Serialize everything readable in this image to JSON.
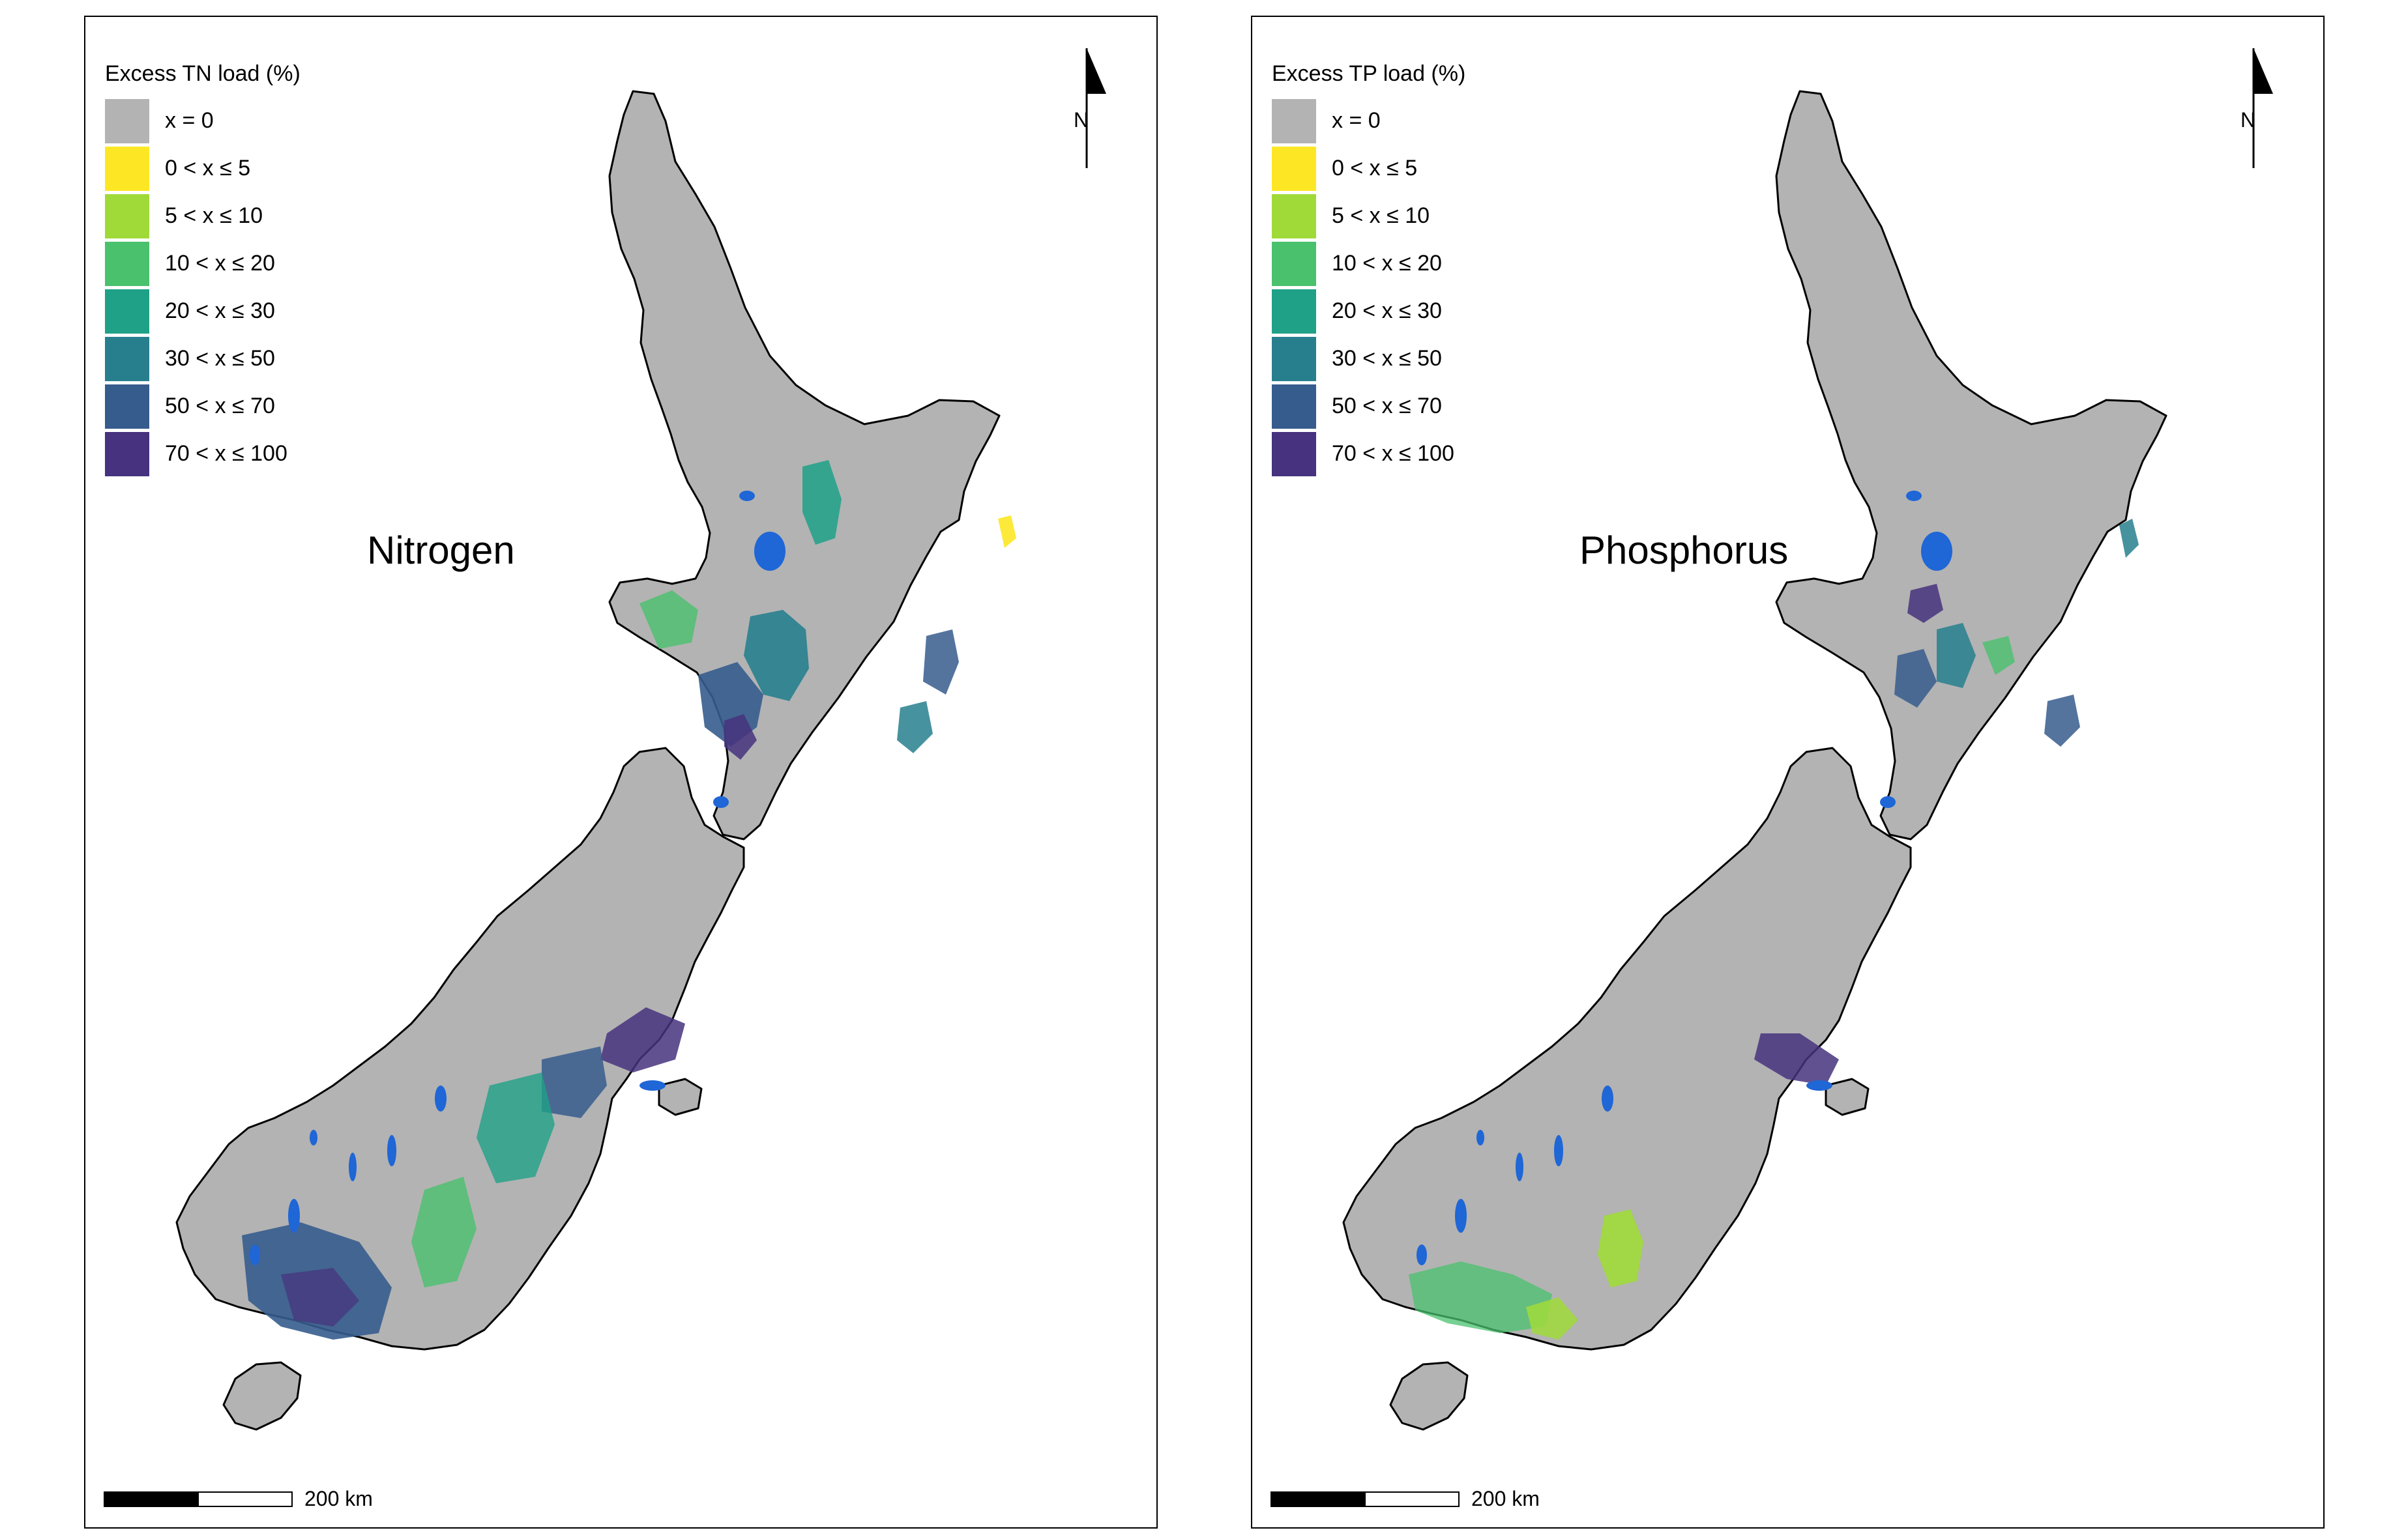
{
  "colors": {
    "x0": "#b3b3b3",
    "c0_5": "#fde725",
    "c5_10": "#a0da39",
    "c10_20": "#4ac16d",
    "c20_30": "#1fa187",
    "c30_50": "#277f8e",
    "c50_70": "#365c8d",
    "c70_100": "#46327e",
    "water": "#1f66d6",
    "outline": "#000000"
  },
  "legend_labels": [
    "x = 0",
    "0 < x ≤ 5",
    "5 < x ≤ 10",
    "10 < x ≤ 20",
    "20 < x ≤ 30",
    "30 < x ≤ 50",
    "50 < x ≤ 70",
    "70 < x ≤ 100"
  ],
  "maps": [
    {
      "legend_title": "Excess TN load (%)",
      "title": "Nitrogen"
    },
    {
      "legend_title": "Excess TP load (%)",
      "title": "Phosphorus"
    }
  ],
  "north_label": "N",
  "scale_label": "200 km"
}
